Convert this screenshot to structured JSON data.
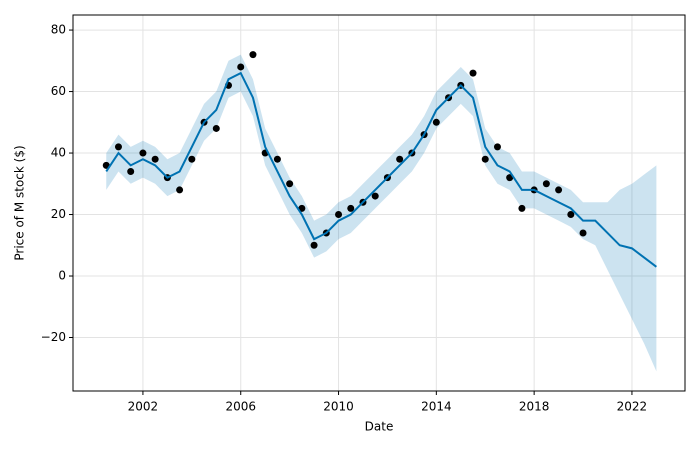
{
  "chart_data": {
    "type": "forecast",
    "xlabel": "Date",
    "ylabel": "Price of M stock ($)",
    "x": [
      2000.5,
      2001,
      2001.5,
      2002,
      2002.5,
      2003,
      2003.5,
      2004,
      2004.5,
      2005,
      2005.5,
      2006,
      2006.5,
      2007,
      2007.5,
      2008,
      2008.5,
      2009,
      2009.5,
      2010,
      2010.5,
      2011,
      2011.5,
      2012,
      2012.5,
      2013,
      2013.5,
      2014,
      2014.5,
      2015,
      2015.5,
      2016,
      2016.5,
      2017,
      2017.5,
      2018,
      2018.5,
      2019,
      2019.5,
      2020,
      2020.5,
      2021,
      2021.5,
      2022,
      2022.5,
      2023
    ],
    "points": {
      "color": "#000000",
      "values": [
        36,
        42,
        34,
        40,
        38,
        32,
        28,
        38,
        50,
        48,
        62,
        68,
        72,
        40,
        38,
        30,
        22,
        10,
        14,
        20,
        22,
        24,
        26,
        32,
        38,
        40,
        46,
        50,
        58,
        62,
        66,
        38,
        42,
        32,
        22,
        28,
        30,
        28,
        20,
        14,
        null,
        null,
        null,
        null,
        null,
        null
      ]
    },
    "line": {
      "color": "#0072b2",
      "values": [
        34,
        40,
        36,
        38,
        36,
        32,
        34,
        42,
        50,
        54,
        64,
        66,
        58,
        42,
        34,
        26,
        20,
        12,
        14,
        18,
        20,
        24,
        28,
        32,
        36,
        40,
        46,
        54,
        58,
        62,
        58,
        42,
        36,
        34,
        28,
        28,
        26,
        24,
        22,
        18,
        18,
        14,
        10,
        9,
        6,
        3
      ]
    },
    "band": {
      "color": "#0072b2",
      "lower": [
        28,
        34,
        30,
        32,
        30,
        26,
        28,
        36,
        44,
        48,
        58,
        60,
        52,
        36,
        28,
        20,
        14,
        6,
        8,
        12,
        14,
        18,
        22,
        26,
        30,
        34,
        40,
        48,
        52,
        56,
        52,
        36,
        30,
        28,
        22,
        22,
        20,
        18,
        16,
        12,
        10,
        2,
        -6,
        -14,
        -22,
        -31
      ],
      "upper": [
        40,
        46,
        42,
        44,
        42,
        38,
        40,
        48,
        56,
        60,
        70,
        72,
        64,
        48,
        40,
        32,
        26,
        18,
        20,
        24,
        26,
        30,
        34,
        38,
        42,
        46,
        52,
        60,
        64,
        68,
        64,
        48,
        42,
        40,
        34,
        34,
        32,
        30,
        28,
        24,
        24,
        24,
        28,
        30,
        33,
        36
      ]
    },
    "xlim": [
      1999.14,
      2024.17
    ],
    "xticks": [
      2002,
      2006,
      2010,
      2014,
      2018,
      2022
    ],
    "ylim": [
      -37.4,
      84.9
    ],
    "yticks": [
      {
        "value": -20,
        "label": "−20"
      },
      0,
      20,
      40,
      60,
      80
    ],
    "grid": true
  }
}
